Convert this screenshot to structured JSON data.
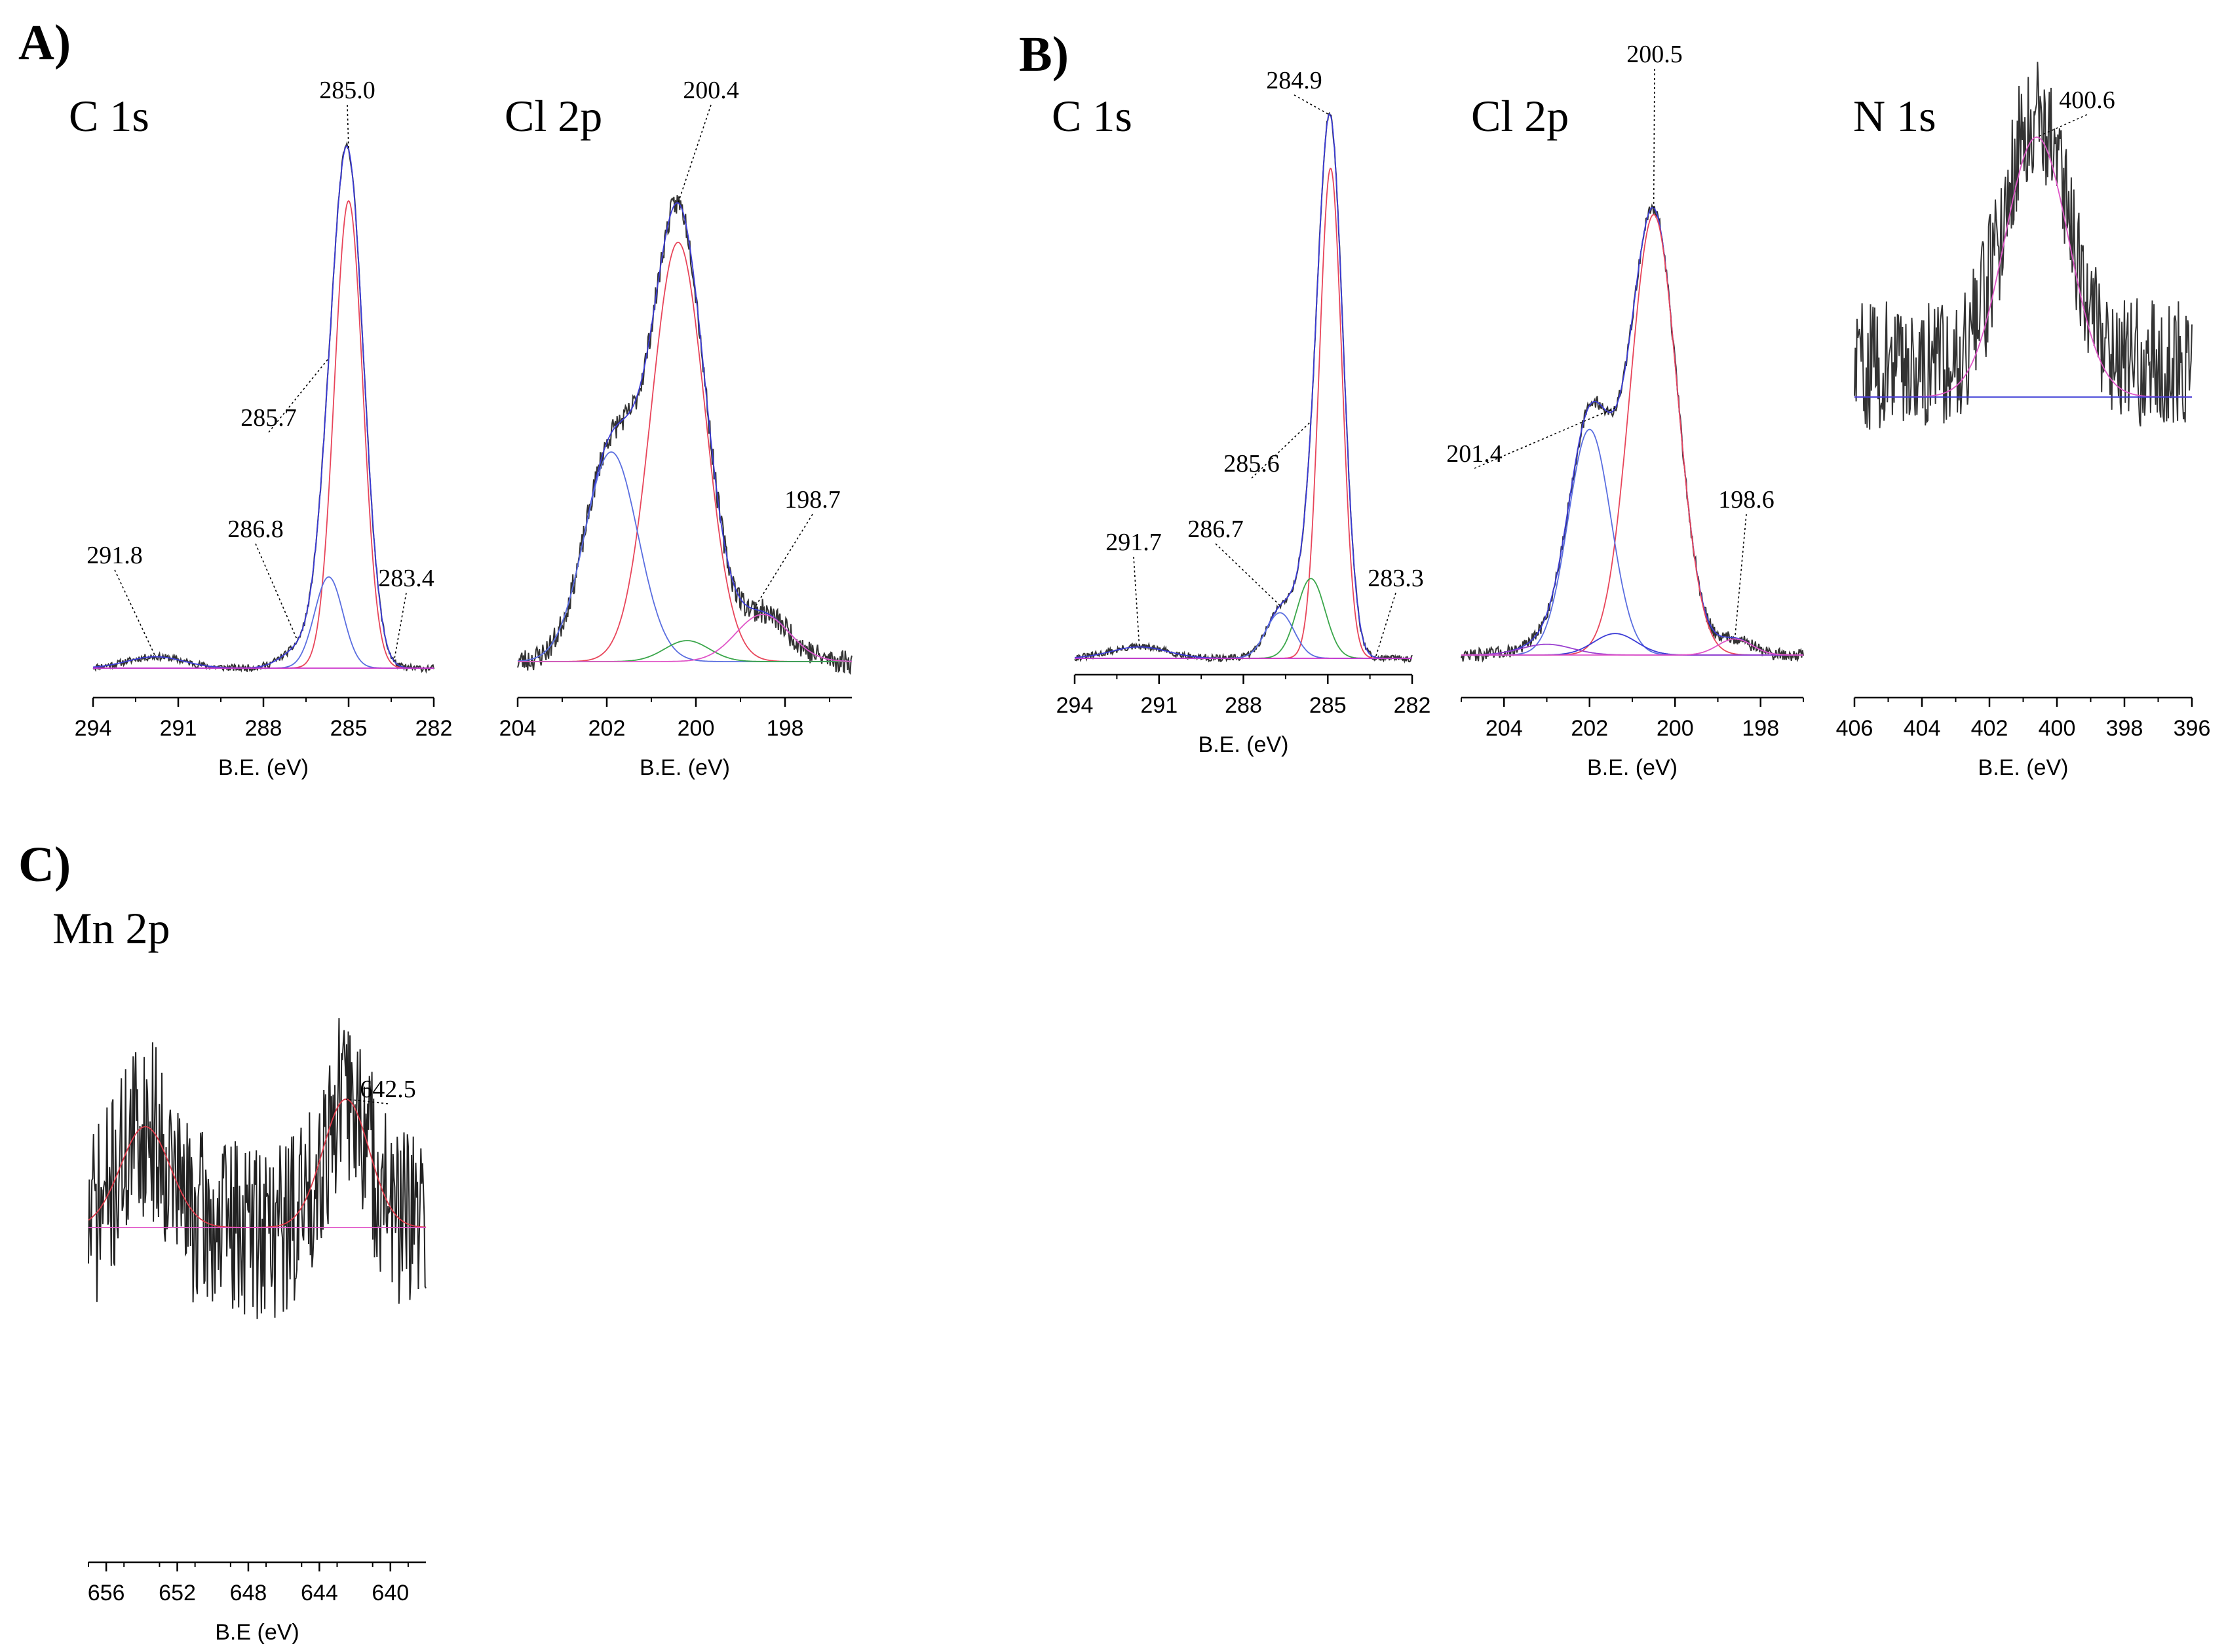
{
  "panels": [
    {
      "id": "A",
      "letter": "A)"
    },
    {
      "id": "B",
      "letter": "B)"
    },
    {
      "id": "C",
      "letter": "C)"
    }
  ],
  "chart_data": [
    {
      "id": "A-C1s",
      "panel": "A",
      "type": "line",
      "title": "C 1s",
      "xlabel": "B.E. (eV)",
      "xlim": [
        294,
        282
      ],
      "ylim": [
        0,
        100
      ],
      "xticks": [
        294,
        291,
        288,
        285,
        282
      ],
      "series": [
        {
          "name": "raw",
          "color": "#333333",
          "components": [
            {
              "c": 285.0,
              "w": 0.55,
              "h": 85
            },
            {
              "c": 285.7,
              "w": 0.5,
              "h": 16
            },
            {
              "c": 286.8,
              "w": 0.6,
              "h": 3
            },
            {
              "c": 291.8,
              "w": 1.0,
              "h": 2
            }
          ],
          "noise": 0.6,
          "seed": 11
        },
        {
          "name": "envelope",
          "color": "#3b3bd6",
          "components": [
            {
              "c": 285.0,
              "w": 0.55,
              "h": 85
            },
            {
              "c": 285.7,
              "w": 0.5,
              "h": 16
            },
            {
              "c": 286.8,
              "w": 0.6,
              "h": 3
            },
            {
              "c": 291.8,
              "w": 1.0,
              "h": 2
            }
          ]
        },
        {
          "name": "C-C",
          "color": "#e8455a",
          "components": [
            {
              "c": 285.0,
              "w": 0.5,
              "h": 82
            }
          ]
        },
        {
          "name": "C-O",
          "color": "#5a6ee0",
          "components": [
            {
              "c": 285.7,
              "w": 0.5,
              "h": 16
            }
          ]
        },
        {
          "name": "background",
          "color": "#cc33cc",
          "components": []
        }
      ],
      "labels": [
        {
          "text": "285.0",
          "x": 285.0
        },
        {
          "text": "285.7",
          "x": 285.7
        },
        {
          "text": "286.8",
          "x": 286.8
        },
        {
          "text": "291.8",
          "x": 291.8
        },
        {
          "text": "283.4",
          "x": 283.4
        }
      ]
    },
    {
      "id": "A-Cl2p",
      "panel": "A",
      "type": "line",
      "title": "Cl 2p",
      "xlabel": "B.E. (eV)",
      "xlim": [
        204,
        196.5
      ],
      "ylim": [
        0,
        100
      ],
      "xticks": [
        204,
        202,
        200,
        198
      ],
      "series": [
        {
          "name": "raw",
          "color": "#333333",
          "components": [
            {
              "c": 200.4,
              "w": 0.6,
              "h": 82
            },
            {
              "c": 201.9,
              "w": 0.6,
              "h": 40
            },
            {
              "c": 200.2,
              "w": 0.5,
              "h": 4
            },
            {
              "c": 198.5,
              "w": 0.6,
              "h": 9
            }
          ],
          "noise": 2.4,
          "seed": 23
        },
        {
          "name": "envelope",
          "color": "#3b3bd6",
          "components": [
            {
              "c": 200.4,
              "w": 0.6,
              "h": 82
            },
            {
              "c": 201.9,
              "w": 0.6,
              "h": 40
            },
            {
              "c": 200.2,
              "w": 0.5,
              "h": 4
            },
            {
              "c": 198.5,
              "w": 0.6,
              "h": 9
            }
          ]
        },
        {
          "name": "Cl 2p3/2",
          "color": "#e8455a",
          "components": [
            {
              "c": 200.4,
              "w": 0.6,
              "h": 80
            }
          ]
        },
        {
          "name": "Cl 2p1/2",
          "color": "#5a6ee0",
          "components": [
            {
              "c": 201.9,
              "w": 0.6,
              "h": 40
            }
          ]
        },
        {
          "name": "minor-1",
          "color": "#3aa64a",
          "components": [
            {
              "c": 200.2,
              "w": 0.5,
              "h": 4
            }
          ]
        },
        {
          "name": "minor-2",
          "color": "#e055c8",
          "components": [
            {
              "c": 198.5,
              "w": 0.6,
              "h": 9
            }
          ]
        }
      ],
      "labels": [
        {
          "text": "200.4",
          "x": 200.4
        },
        {
          "text": "198.7",
          "x": 198.7
        }
      ]
    },
    {
      "id": "B-C1s",
      "panel": "B",
      "type": "line",
      "title": "C 1s",
      "xlabel": "B.E. (eV)",
      "xlim": [
        294,
        282
      ],
      "ylim": [
        0,
        100
      ],
      "xticks": [
        294,
        291,
        288,
        285,
        282
      ],
      "series": [
        {
          "name": "raw",
          "color": "#333333",
          "components": [
            {
              "c": 284.9,
              "w": 0.45,
              "h": 90
            },
            {
              "c": 285.6,
              "w": 0.5,
              "h": 14
            },
            {
              "c": 286.7,
              "w": 0.5,
              "h": 8
            },
            {
              "c": 291.7,
              "w": 1.0,
              "h": 2
            }
          ],
          "noise": 0.6,
          "seed": 31
        },
        {
          "name": "envelope",
          "color": "#3b3bd6",
          "components": [
            {
              "c": 284.9,
              "w": 0.45,
              "h": 90
            },
            {
              "c": 285.6,
              "w": 0.5,
              "h": 14
            },
            {
              "c": 286.7,
              "w": 0.5,
              "h": 8
            },
            {
              "c": 291.7,
              "w": 1.0,
              "h": 2
            }
          ]
        },
        {
          "name": "C-C",
          "color": "#e8455a",
          "components": [
            {
              "c": 284.9,
              "w": 0.4,
              "h": 86
            }
          ]
        },
        {
          "name": "C-N",
          "color": "#3aa64a",
          "components": [
            {
              "c": 285.6,
              "w": 0.5,
              "h": 14
            }
          ]
        },
        {
          "name": "C-O",
          "color": "#5a6ee0",
          "components": [
            {
              "c": 286.7,
              "w": 0.5,
              "h": 8
            }
          ]
        },
        {
          "name": "background",
          "color": "#cc33cc",
          "components": []
        }
      ],
      "labels": [
        {
          "text": "284.9",
          "x": 284.9
        },
        {
          "text": "285.6",
          "x": 285.6
        },
        {
          "text": "286.7",
          "x": 286.7
        },
        {
          "text": "291.7",
          "x": 291.7
        },
        {
          "text": "283.3",
          "x": 283.3
        }
      ]
    },
    {
      "id": "B-Cl2p",
      "panel": "B",
      "type": "line",
      "title": "Cl 2p",
      "xlabel": "B.E. (eV)",
      "xlim": [
        205,
        197
      ],
      "ylim": [
        0,
        100
      ],
      "xticks": [
        204,
        202,
        200,
        198
      ],
      "series": [
        {
          "name": "raw",
          "color": "#333333",
          "components": [
            {
              "c": 200.5,
              "w": 0.55,
              "h": 82
            },
            {
              "c": 202.0,
              "w": 0.5,
              "h": 42
            },
            {
              "c": 201.4,
              "w": 0.5,
              "h": 4
            },
            {
              "c": 203.0,
              "w": 0.6,
              "h": 2
            },
            {
              "c": 198.6,
              "w": 0.4,
              "h": 3
            }
          ],
          "noise": 1.2,
          "seed": 47
        },
        {
          "name": "envelope",
          "color": "#3b3bd6",
          "components": [
            {
              "c": 200.5,
              "w": 0.55,
              "h": 82
            },
            {
              "c": 202.0,
              "w": 0.5,
              "h": 42
            },
            {
              "c": 201.4,
              "w": 0.5,
              "h": 4
            },
            {
              "c": 203.0,
              "w": 0.6,
              "h": 2
            },
            {
              "c": 198.6,
              "w": 0.4,
              "h": 3
            }
          ]
        },
        {
          "name": "Cl 2p3/2",
          "color": "#e8455a",
          "components": [
            {
              "c": 200.5,
              "w": 0.55,
              "h": 82
            }
          ]
        },
        {
          "name": "Cl 2p1/2",
          "color": "#5a6ee0",
          "components": [
            {
              "c": 202.0,
              "w": 0.5,
              "h": 42
            }
          ]
        },
        {
          "name": "minor-1",
          "color": "#3b3bd6",
          "components": [
            {
              "c": 201.4,
              "w": 0.5,
              "h": 4
            }
          ]
        },
        {
          "name": "minor-2",
          "color": "#9a3fd0",
          "components": [
            {
              "c": 203.0,
              "w": 0.6,
              "h": 2
            }
          ]
        },
        {
          "name": "minor-3",
          "color": "#e055c8",
          "components": [
            {
              "c": 198.6,
              "w": 0.4,
              "h": 3
            }
          ]
        }
      ],
      "labels": [
        {
          "text": "200.5",
          "x": 200.5
        },
        {
          "text": "201.4",
          "x": 201.4
        },
        {
          "text": "198.6",
          "x": 198.6
        }
      ]
    },
    {
      "id": "B-N1s",
      "panel": "B",
      "type": "line",
      "title": "N 1s",
      "xlabel": "B.E. (eV)",
      "xlim": [
        406,
        396
      ],
      "ylim": [
        0,
        100
      ],
      "xticks": [
        406,
        404,
        402,
        400,
        398,
        396
      ],
      "series": [
        {
          "name": "raw",
          "color": "#333333",
          "components": [
            {
              "c": 400.6,
              "w": 0.95,
              "h": 62
            }
          ],
          "base": 32,
          "noise": 16,
          "seed": 59
        },
        {
          "name": "fit",
          "color": "#e055c8",
          "components": [
            {
              "c": 400.6,
              "w": 0.95,
              "h": 64
            }
          ],
          "base": 24
        },
        {
          "name": "background",
          "color": "#3b3bd6",
          "components": [],
          "base": 24
        }
      ],
      "labels": [
        {
          "text": "400.6",
          "x": 400.6
        }
      ]
    },
    {
      "id": "C-Mn2p",
      "panel": "C",
      "type": "line",
      "title": "Mn 2p",
      "xlabel": "B.E (eV)",
      "xlim": [
        657,
        638
      ],
      "ylim": [
        0,
        100
      ],
      "xticks": [
        656,
        652,
        648,
        644,
        640
      ],
      "series": [
        {
          "name": "raw",
          "color": "#222222",
          "components": [
            {
              "c": 653.8,
              "w": 1.4,
              "h": 22
            },
            {
              "c": 642.5,
              "w": 1.3,
              "h": 28
            }
          ],
          "base": 38,
          "noise": 20,
          "seed": 71
        },
        {
          "name": "fit",
          "color": "#e03a4a",
          "components": [
            {
              "c": 653.8,
              "w": 1.4,
              "h": 22
            },
            {
              "c": 642.5,
              "w": 1.3,
              "h": 28
            }
          ],
          "base": 38
        },
        {
          "name": "background",
          "color": "#e055c8",
          "components": [],
          "base": 38
        }
      ],
      "labels": [
        {
          "text": "642.5",
          "x": 642.5
        }
      ]
    }
  ]
}
